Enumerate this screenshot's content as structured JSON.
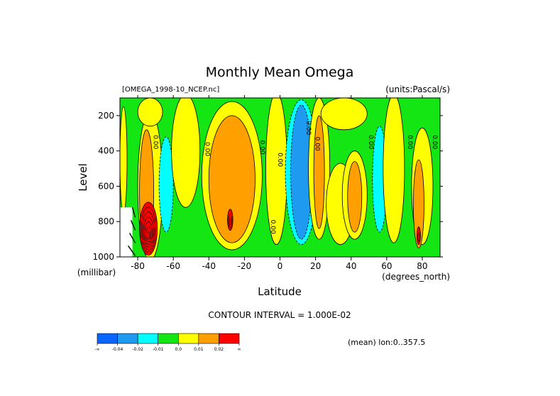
{
  "chart_data": {
    "type": "heatmap",
    "title": "Monthly Mean Omega",
    "subtitle_left": "[OMEGA_1998-10_NCEP.nc]",
    "subtitle_right": "(units:Pascal/s)",
    "xlabel": "Latitude",
    "xunit": "(degrees_north)",
    "ylabel": "Level",
    "yunit": "(millibar)",
    "xlim": [
      -90,
      90
    ],
    "ylim": [
      1000,
      100
    ],
    "xticks": [
      -80,
      -60,
      -40,
      -20,
      0,
      20,
      40,
      60,
      80
    ],
    "yticks": [
      200,
      400,
      600,
      800,
      1000
    ],
    "contour_interval_text": "CONTOUR INTERVAL = 1.000E-02",
    "footer_text": "(mean) lon:0..357.5",
    "contour_labels": [
      {
        "text": "0.00",
        "x": -71,
        "y": 350
      },
      {
        "text": "0.00",
        "x": -42,
        "y": 390
      },
      {
        "text": "0.00",
        "x": -11,
        "y": 380
      },
      {
        "text": "0.00",
        "x": -1,
        "y": 450
      },
      {
        "text": "0.00",
        "x": -5,
        "y": 830
      },
      {
        "text": "0.00",
        "x": 15,
        "y": 270
      },
      {
        "text": "0.00",
        "x": 20,
        "y": 360
      },
      {
        "text": "0.00",
        "x": 50,
        "y": 350
      },
      {
        "text": "0.00",
        "x": 72,
        "y": 350
      },
      {
        "text": "0.00",
        "x": 86,
        "y": 350
      }
    ],
    "regions": [
      {
        "level": "yellow",
        "x": -88,
        "y": 450,
        "rx": 2,
        "ry": 300
      },
      {
        "level": "yellow",
        "x": -73,
        "y": 600,
        "rx": 7,
        "ry": 420
      },
      {
        "level": "orange",
        "x": -75,
        "y": 630,
        "rx": 4,
        "ry": 350
      },
      {
        "level": "cyan",
        "x": -64,
        "y": 590,
        "rx": 4,
        "ry": 270
      },
      {
        "level": "yellow",
        "x": -53,
        "y": 400,
        "rx": 8,
        "ry": 320
      },
      {
        "level": "yellow",
        "x": -27,
        "y": 540,
        "rx": 17,
        "ry": 420
      },
      {
        "level": "orange",
        "x": -27,
        "y": 560,
        "rx": 13,
        "ry": 360
      },
      {
        "level": "yellow",
        "x": -2,
        "y": 500,
        "rx": 6,
        "ry": 430
      },
      {
        "level": "cyan",
        "x": 12,
        "y": 520,
        "rx": 9,
        "ry": 410
      },
      {
        "level": "blue",
        "x": 12,
        "y": 520,
        "rx": 6,
        "ry": 380
      },
      {
        "level": "yellow",
        "x": 22,
        "y": 500,
        "rx": 6,
        "ry": 400
      },
      {
        "level": "orange",
        "x": 22,
        "y": 520,
        "rx": 3,
        "ry": 320
      },
      {
        "level": "yellow",
        "x": 34,
        "y": 700,
        "rx": 8,
        "ry": 230
      },
      {
        "level": "yellow",
        "x": 42,
        "y": 650,
        "rx": 7,
        "ry": 250
      },
      {
        "level": "orange",
        "x": 42,
        "y": 660,
        "rx": 4,
        "ry": 200
      },
      {
        "level": "cyan",
        "x": 56,
        "y": 560,
        "rx": 4,
        "ry": 300
      },
      {
        "level": "yellow",
        "x": 64,
        "y": 500,
        "rx": 6,
        "ry": 420
      },
      {
        "level": "yellow",
        "x": 80,
        "y": 600,
        "rx": 6,
        "ry": 330
      },
      {
        "level": "orange",
        "x": 78,
        "y": 700,
        "rx": 3,
        "ry": 250
      },
      {
        "level": "yellow",
        "x": 36,
        "y": 190,
        "rx": 13,
        "ry": 90
      },
      {
        "level": "yellow",
        "x": -73,
        "y": 180,
        "rx": 7,
        "ry": 80
      }
    ],
    "extremes": [
      {
        "level": "red",
        "x": -74,
        "y": 840,
        "rx": 5,
        "ry": 150
      },
      {
        "level": "red",
        "x": -28,
        "y": 790,
        "rx": 1.5,
        "ry": 60
      },
      {
        "level": "red",
        "x": 78,
        "y": 880,
        "rx": 1,
        "ry": 50
      }
    ],
    "legend": {
      "labels": [
        "-∞",
        "-0.04",
        "-0.02",
        "-0.01",
        "0.0",
        "0.01",
        "0.02",
        "∞"
      ],
      "colors": [
        "#0a64ff",
        "#1e9bf0",
        "#00ffff",
        "#14e614",
        "#ffff00",
        "#ffa000",
        "#ff0000"
      ]
    },
    "colors": {
      "background": "#14e614",
      "blue": "#1e9bf0",
      "cyan": "#00ffff",
      "yellow": "#ffff00",
      "orange": "#ffa000",
      "red": "#ff0000"
    },
    "grid": false
  }
}
